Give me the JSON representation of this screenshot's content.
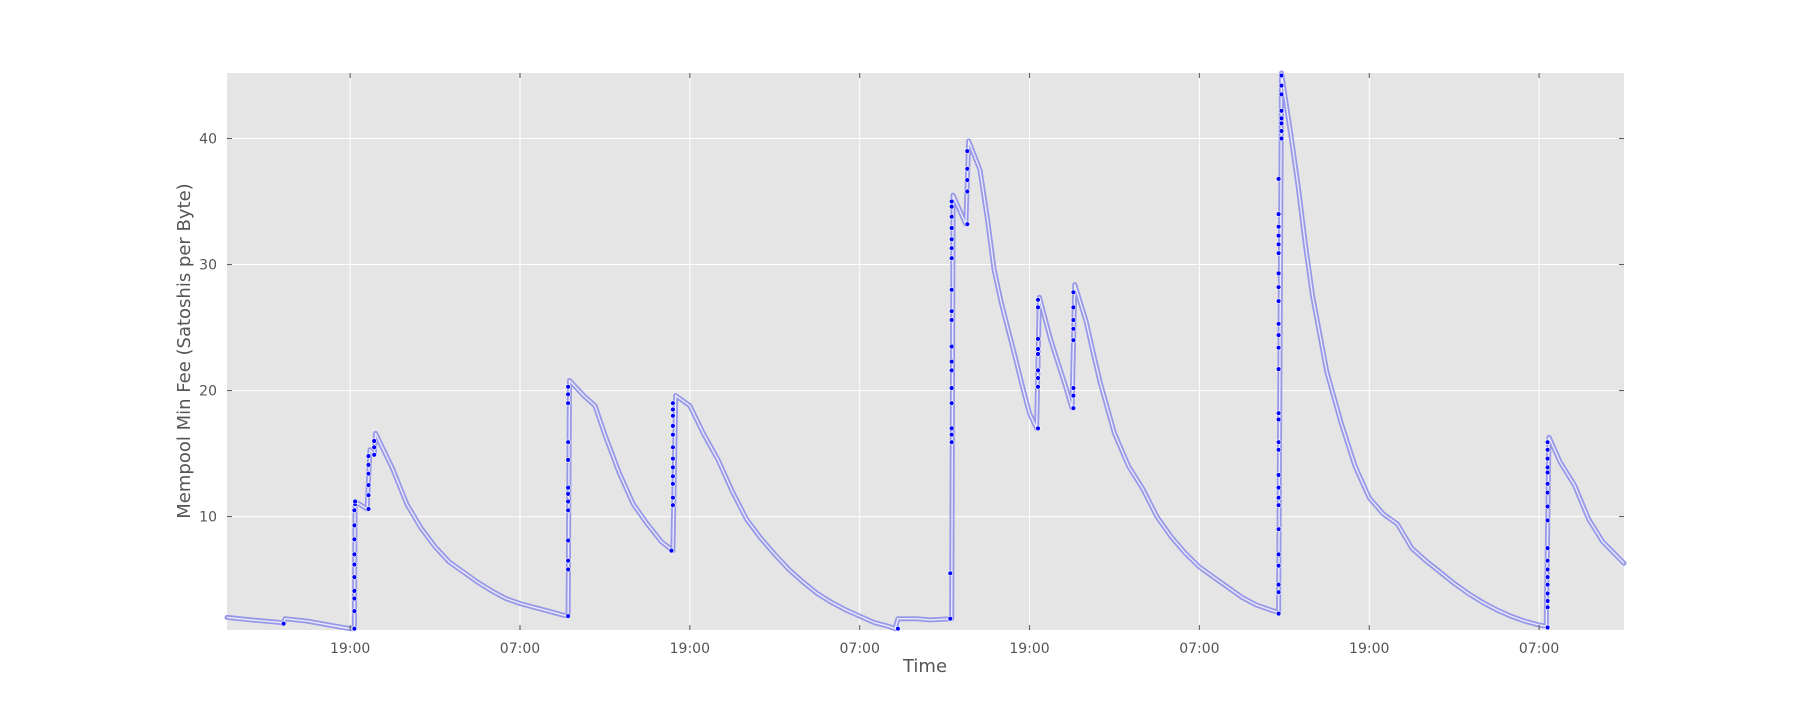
{
  "chart_data": {
    "type": "scatter",
    "title": "",
    "xlabel": "Time",
    "ylabel": "Mempool Min Fee (Satoshis per Byte)",
    "x_unit": "hours",
    "xlim": [
      -8.7,
      90.0
    ],
    "ylim": [
      1.0,
      45.2
    ],
    "x_ticks": [
      {
        "value": 0,
        "label": "19:00"
      },
      {
        "value": 12,
        "label": "07:00"
      },
      {
        "value": 24,
        "label": "19:00"
      },
      {
        "value": 36,
        "label": "07:00"
      },
      {
        "value": 48,
        "label": "19:00"
      },
      {
        "value": 60,
        "label": "07:00"
      },
      {
        "value": 72,
        "label": "19:00"
      },
      {
        "value": 84,
        "label": "07:00"
      }
    ],
    "y_ticks": [
      10,
      20,
      30,
      40
    ],
    "grid": true,
    "background": "#e5e5e5",
    "colors": {
      "points": "#0000ff",
      "trail": "#8f8fe8"
    },
    "series": [
      {
        "decay_curve": [
          [
            -8.7,
            2.0
          ],
          [
            -7,
            1.8
          ],
          [
            -5,
            1.6
          ],
          [
            -4.7,
            1.5
          ],
          [
            -4.6,
            1.9
          ],
          [
            -3,
            1.7
          ],
          [
            -1.5,
            1.4
          ],
          [
            -0.5,
            1.2
          ],
          [
            0,
            1.1
          ],
          [
            0.3,
            1.1
          ],
          [
            0.35,
            11.2
          ],
          [
            1.2,
            10.6
          ],
          [
            1.4,
            15.3
          ],
          [
            1.7,
            14.9
          ],
          [
            1.8,
            16.6
          ],
          [
            3,
            13.8
          ],
          [
            4,
            11.0
          ],
          [
            5,
            9.1
          ],
          [
            6,
            7.6
          ],
          [
            7,
            6.4
          ],
          [
            8,
            5.6
          ],
          [
            9,
            4.8
          ],
          [
            10,
            4.1
          ],
          [
            11,
            3.5
          ],
          [
            12,
            3.1
          ],
          [
            13,
            2.8
          ],
          [
            14,
            2.5
          ],
          [
            15,
            2.2
          ],
          [
            15.4,
            2.1
          ],
          [
            15.5,
            20.8
          ],
          [
            16.5,
            19.6
          ],
          [
            17.3,
            18.8
          ],
          [
            18,
            16.5
          ],
          [
            19,
            13.5
          ],
          [
            20,
            11.0
          ],
          [
            21,
            9.4
          ],
          [
            22,
            8.0
          ],
          [
            22.8,
            7.3
          ],
          [
            23,
            19.6
          ],
          [
            24,
            18.8
          ],
          [
            25,
            16.5
          ],
          [
            26,
            14.5
          ],
          [
            27,
            12.0
          ],
          [
            28,
            9.8
          ],
          [
            29,
            8.3
          ],
          [
            30,
            7.0
          ],
          [
            31,
            5.8
          ],
          [
            32,
            4.8
          ],
          [
            33,
            3.9
          ],
          [
            34,
            3.2
          ],
          [
            35,
            2.6
          ],
          [
            36,
            2.1
          ],
          [
            37,
            1.6
          ],
          [
            38,
            1.3
          ],
          [
            38.5,
            1.1
          ],
          [
            38.7,
            1.9
          ],
          [
            40,
            1.9
          ],
          [
            41,
            1.8
          ],
          [
            42.5,
            1.9
          ],
          [
            42.6,
            35.5
          ],
          [
            43.5,
            33.2
          ],
          [
            43.7,
            39.8
          ],
          [
            44.5,
            37.5
          ],
          [
            45,
            33.8
          ],
          [
            45.5,
            29.6
          ],
          [
            46,
            27.0
          ],
          [
            46.5,
            24.8
          ],
          [
            47,
            22.6
          ],
          [
            47.5,
            20.3
          ],
          [
            48,
            18.2
          ],
          [
            48.5,
            17.0
          ],
          [
            48.7,
            27.4
          ],
          [
            49.5,
            24.0
          ],
          [
            50.5,
            20.5
          ],
          [
            51,
            18.6
          ],
          [
            51.2,
            28.4
          ],
          [
            52,
            25.5
          ],
          [
            52.5,
            23.0
          ],
          [
            53,
            20.6
          ],
          [
            54,
            16.6
          ],
          [
            55,
            14.0
          ],
          [
            56,
            12.2
          ],
          [
            57,
            10.0
          ],
          [
            58,
            8.4
          ],
          [
            59,
            7.1
          ],
          [
            60,
            6.0
          ],
          [
            61,
            5.2
          ],
          [
            62,
            4.4
          ],
          [
            63,
            3.6
          ],
          [
            64,
            3.0
          ],
          [
            65,
            2.6
          ],
          [
            65.6,
            2.4
          ],
          [
            65.8,
            45.2
          ],
          [
            66.5,
            40.0
          ],
          [
            67,
            36.0
          ],
          [
            67.5,
            31.5
          ],
          [
            68,
            27.5
          ],
          [
            69,
            21.5
          ],
          [
            70,
            17.5
          ],
          [
            71,
            14.0
          ],
          [
            72,
            11.5
          ],
          [
            73,
            10.2
          ],
          [
            74,
            9.4
          ],
          [
            75,
            7.5
          ],
          [
            76,
            6.5
          ],
          [
            77,
            5.6
          ],
          [
            78,
            4.7
          ],
          [
            79,
            3.9
          ],
          [
            80,
            3.2
          ],
          [
            81,
            2.6
          ],
          [
            82,
            2.1
          ],
          [
            83,
            1.7
          ],
          [
            84,
            1.4
          ],
          [
            84.5,
            1.3
          ],
          [
            84.7,
            16.3
          ],
          [
            85.5,
            14.3
          ],
          [
            86.5,
            12.5
          ],
          [
            87.5,
            9.8
          ],
          [
            88.5,
            8.0
          ],
          [
            90,
            6.3
          ]
        ],
        "spikes": [
          {
            "x": -4.7,
            "ys": [
              1.5
            ]
          },
          {
            "x": 0.3,
            "ys": [
              1.1,
              2.5,
              3.5,
              4.1,
              5.2,
              6.2,
              7.0,
              8.2,
              9.3,
              10.5
            ]
          },
          {
            "x": 0.35,
            "ys": [
              11.0,
              11.2
            ]
          },
          {
            "x": 1.3,
            "ys": [
              10.6,
              11.7,
              12.5,
              13.4,
              14.1,
              14.8
            ]
          },
          {
            "x": 1.7,
            "ys": [
              14.9,
              15.5,
              16.0
            ]
          },
          {
            "x": 15.4,
            "ys": [
              2.1,
              5.8,
              6.5,
              8.1,
              10.5,
              11.2,
              11.8,
              12.3,
              14.5,
              15.9,
              19.0,
              19.7,
              20.3
            ]
          },
          {
            "x": 22.7,
            "ys": [
              7.3
            ]
          },
          {
            "x": 22.8,
            "ys": [
              10.9,
              11.5,
              12.6,
              13.2,
              13.9,
              14.6,
              15.5,
              16.5,
              17.2,
              18.0,
              18.5,
              19.0
            ]
          },
          {
            "x": 38.7,
            "ys": [
              1.1
            ]
          },
          {
            "x": 42.4,
            "ys": [
              1.9,
              5.5
            ]
          },
          {
            "x": 42.5,
            "ys": [
              15.9,
              16.5,
              17.0,
              19.0,
              20.2,
              21.6,
              22.3,
              23.5,
              25.6,
              26.3,
              28.0,
              30.5,
              31.3,
              32.0,
              32.9,
              33.8,
              34.6,
              35.0
            ]
          },
          {
            "x": 43.6,
            "ys": [
              33.2,
              35.8,
              36.7,
              37.6,
              39.0
            ]
          },
          {
            "x": 48.6,
            "ys": [
              17.0,
              20.3,
              21.0,
              21.6,
              22.9,
              23.3,
              24.1,
              26.6,
              27.2
            ]
          },
          {
            "x": 51.1,
            "ys": [
              18.6,
              19.6,
              20.2,
              24.0,
              24.9,
              25.6,
              26.6,
              27.8
            ]
          },
          {
            "x": 65.6,
            "ys": [
              2.3,
              4.0,
              4.6,
              6.1,
              7.0,
              9.0,
              10.9,
              11.5,
              12.3,
              13.3,
              15.3,
              15.9,
              17.7,
              18.2,
              21.7,
              23.4,
              24.4,
              25.3,
              27.1,
              28.2,
              29.3,
              30.9,
              31.6,
              32.3,
              33.0,
              34.0,
              36.8
            ]
          },
          {
            "x": 65.8,
            "ys": [
              40.0,
              40.6,
              41.2,
              41.6,
              42.2,
              43.5,
              44.2,
              45.0
            ]
          },
          {
            "x": 84.6,
            "ys": [
              1.2,
              2.8,
              3.3,
              3.9,
              4.6,
              5.2,
              5.8,
              6.5,
              7.5,
              9.7,
              10.8,
              11.9,
              12.6,
              13.5,
              13.9,
              14.6,
              15.3,
              15.9
            ]
          }
        ]
      }
    ]
  }
}
